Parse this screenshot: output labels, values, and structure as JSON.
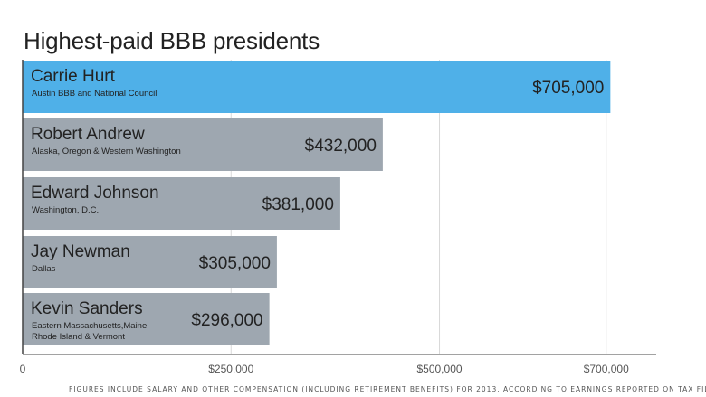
{
  "chart_data": {
    "type": "bar",
    "orientation": "horizontal",
    "title": "Highest-paid BBB presidents",
    "categories": [
      "Carrie Hurt",
      "Robert Andrew",
      "Edward Johnson",
      "Jay Newman",
      "Kevin Sanders"
    ],
    "subtitles": [
      [
        "Austin BBB and National Council"
      ],
      [
        "Alaska, Oregon & Western Washington"
      ],
      [
        "Washington, D.C."
      ],
      [
        "Dallas"
      ],
      [
        "Eastern Massachusetts,Maine",
        "Rhode Island & Vermont"
      ]
    ],
    "values": [
      705000,
      432000,
      381000,
      305000,
      296000
    ],
    "value_labels": [
      "$705,000",
      "$432,000",
      "$381,000",
      "$305,000",
      "$296,000"
    ],
    "xlim": [
      0,
      760000
    ],
    "xticks": [
      0,
      250000,
      500000,
      700000
    ],
    "xtick_labels": [
      "0",
      "$250,000",
      "$500,000",
      "$700,000"
    ],
    "grid": true,
    "highlight_index": 0,
    "colors": {
      "highlight": "#4fb0e8",
      "bar": "#9ea7b0",
      "grid": "#d8d8d8",
      "axis": "#444444",
      "text": "#222222"
    },
    "footnote": "FIGURES INCLUDE SALARY AND OTHER COMPENSATION (INCLUDING RETIREMENT BENEFITS) FOR 2013, ACCORDING TO EARNINGS REPORTED ON TAX FILINGS"
  }
}
